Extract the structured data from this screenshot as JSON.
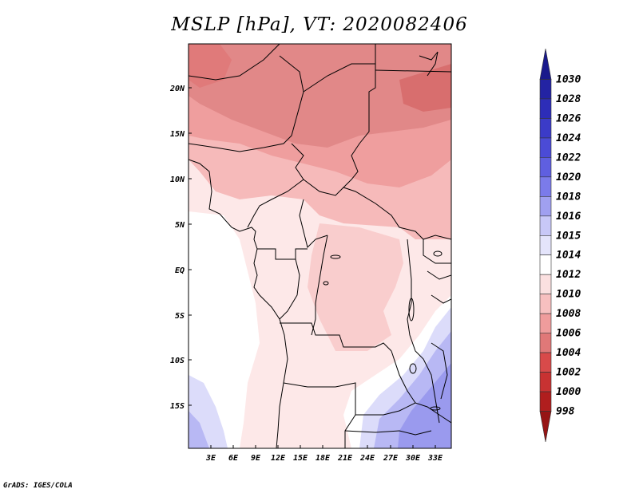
{
  "title": "MSLP [hPa], VT: 2020082406",
  "credit": "GrADS: IGES/COLA",
  "map": {
    "variable": "MSLP",
    "units": "hPa",
    "valid_time": "2020082406",
    "lat_labels": [
      "20N",
      "15N",
      "10N",
      "5N",
      "EQ",
      "5S",
      "10S",
      "15S"
    ],
    "lon_labels": [
      "3E",
      "6E",
      "9E",
      "12E",
      "15E",
      "18E",
      "21E",
      "24E",
      "27E",
      "30E",
      "33E"
    ]
  },
  "colorbar": {
    "labels": [
      "1030",
      "1028",
      "1026",
      "1024",
      "1022",
      "1020",
      "1018",
      "1016",
      "1015",
      "1014",
      "1012",
      "1010",
      "1008",
      "1006",
      "1004",
      "1002",
      "1000",
      "998"
    ],
    "colors": [
      "#1a1a8c",
      "#2323a3",
      "#2d2db8",
      "#3b3bc8",
      "#4b4bd6",
      "#5f5fe0",
      "#7b7bea",
      "#a0a0f0",
      "#c8c8f7",
      "#e4e4fb",
      "#ffffff",
      "#fbe0e0",
      "#f7c0c0",
      "#ef9c9c",
      "#e07878",
      "#d84a4a",
      "#c83232",
      "#b01e1e",
      "#961414"
    ]
  }
}
